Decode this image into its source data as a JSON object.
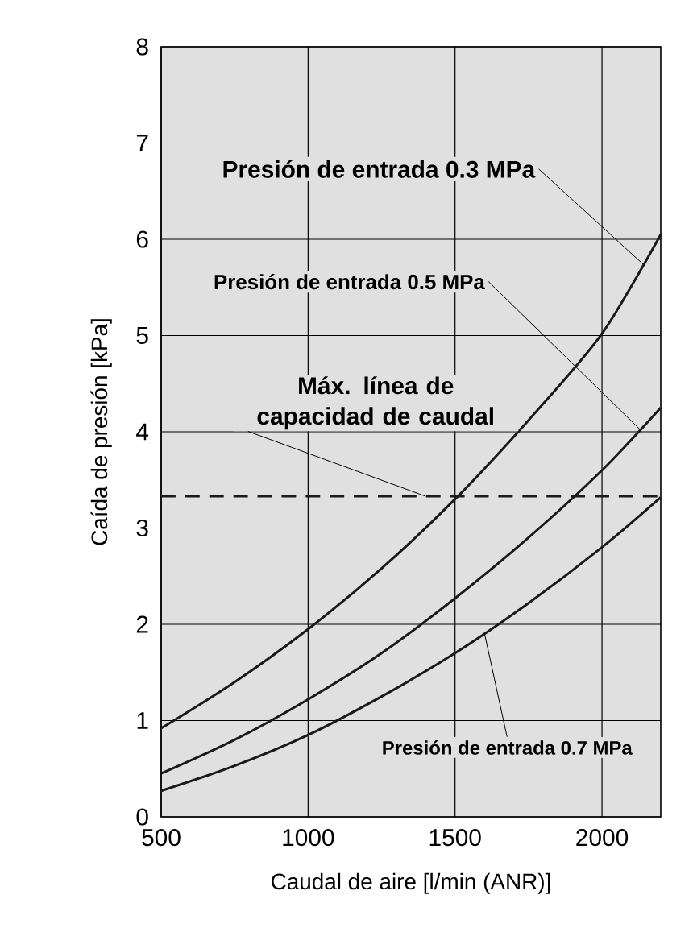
{
  "chart_data": {
    "type": "line",
    "xlabel": "Caudal de aire [l/min (ANR)]",
    "ylabel": "Caída de presión [kPa]",
    "x": [
      500,
      750,
      1000,
      1250,
      1500,
      1750,
      2000,
      2200
    ],
    "series": [
      {
        "name": "Presión de entrada 0.3 MPa",
        "color": "#1a1a1a",
        "values": [
          0.92,
          1.4,
          1.95,
          2.58,
          3.3,
          4.12,
          5.02,
          6.05
        ]
      },
      {
        "name": "Presión de entrada 0.5 MPa",
        "color": "#1a1a1a",
        "values": [
          0.45,
          0.8,
          1.22,
          1.7,
          2.27,
          2.9,
          3.6,
          4.25
        ]
      },
      {
        "name": "Presión de entrada 0.7 MPa",
        "color": "#1a1a1a",
        "values": [
          0.27,
          0.53,
          0.85,
          1.25,
          1.7,
          2.22,
          2.8,
          3.32
        ]
      }
    ],
    "xlim": [
      500,
      2200
    ],
    "ylim": [
      0,
      8
    ],
    "xticks": [
      500,
      1000,
      1500,
      2000
    ],
    "yticks": [
      0,
      1,
      2,
      3,
      4,
      5,
      6,
      7,
      8
    ],
    "grid": true,
    "legend": false,
    "marker": "none",
    "line_style": "solid",
    "ref_lines": [
      {
        "axis": "y",
        "value": 3.33,
        "label": "Máx. línea de capacidad de caudal",
        "color": "#1a1a1a",
        "line_style": "dashed"
      }
    ]
  }
}
